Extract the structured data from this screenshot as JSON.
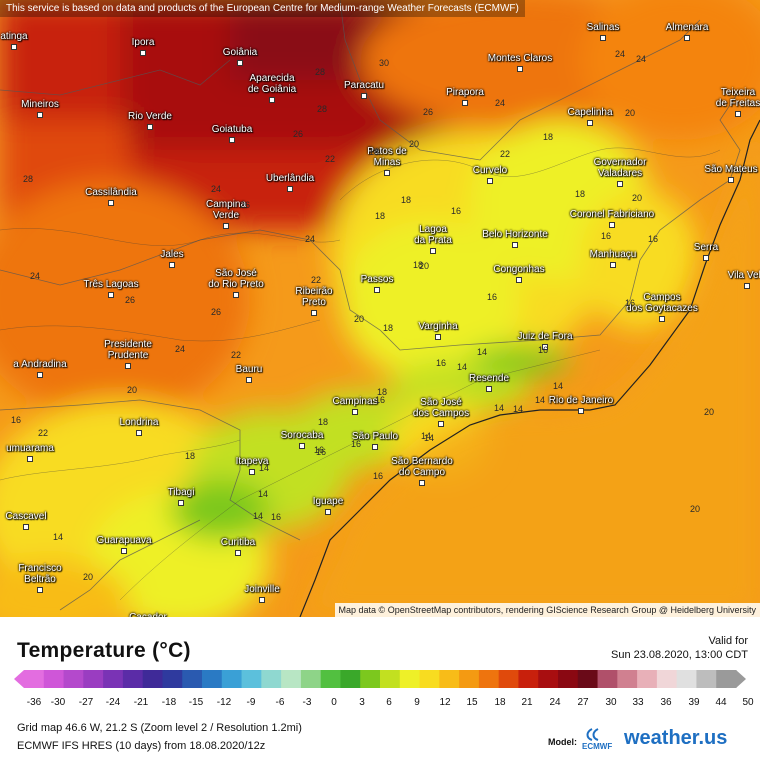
{
  "attribution_top": "This service is based on data and products of the European Centre for Medium-range Weather Forecasts (ECMWF)",
  "attribution_bottom": "Map data © OpenStreetMap contributors, rendering GIScience Research Group @ Heidelberg University",
  "cities": [
    {
      "name": "Ipora"
    },
    {
      "name": "Goiânia"
    },
    {
      "name": "Aparecida\nde Goiânia"
    },
    {
      "name": "Mineiros"
    },
    {
      "name": "Rio Verde"
    },
    {
      "name": "Goiatuba"
    },
    {
      "name": "Paracatu"
    },
    {
      "name": "Pirapora"
    },
    {
      "name": "Montes Claros"
    },
    {
      "name": "Salinas"
    },
    {
      "name": "Almenara"
    },
    {
      "name": "Teixeira\nde Freitas"
    },
    {
      "name": "Capelinha"
    },
    {
      "name": "Patos de\nMinas"
    },
    {
      "name": "Curvelo"
    },
    {
      "name": "Governador\nValadares"
    },
    {
      "name": "São Mateus"
    },
    {
      "name": "Uberlândia"
    },
    {
      "name": "Cassilândia"
    },
    {
      "name": "Campina\nVerde"
    },
    {
      "name": "Coronel Fabriciano"
    },
    {
      "name": "Lagoa\nda Prata"
    },
    {
      "name": "Belo Horizonte"
    },
    {
      "name": "Manhuaçu"
    },
    {
      "name": "Serra"
    },
    {
      "name": "Vila Velh"
    },
    {
      "name": "Jales"
    },
    {
      "name": "Três Lagoas"
    },
    {
      "name": "São José\ndo Rio Preto"
    },
    {
      "name": "Passos"
    },
    {
      "name": "Congonhas"
    },
    {
      "name": "Ribeirão\nPreto"
    },
    {
      "name": "Campos\ndos Goytacazes"
    },
    {
      "name": "Varginha"
    },
    {
      "name": "Juiz de Fora"
    },
    {
      "name": "Presidente\nPrudente"
    },
    {
      "name": "a Andradina"
    },
    {
      "name": "Bauru"
    },
    {
      "name": "Resende"
    },
    {
      "name": "Campinas"
    },
    {
      "name": "São José\ndos Campos"
    },
    {
      "name": "Rio de Janeiro"
    },
    {
      "name": "Londrina"
    },
    {
      "name": "Sorocaba"
    },
    {
      "name": "São Paulo"
    },
    {
      "name": "umuarama"
    },
    {
      "name": "Itapeva"
    },
    {
      "name": "São Bernardo\ndo Campo"
    },
    {
      "name": "Tibagi"
    },
    {
      "name": "Iguape"
    },
    {
      "name": "Cascavel"
    },
    {
      "name": "Guarapuava"
    },
    {
      "name": "Curitiba"
    },
    {
      "name": "Francisco\nBeltrão"
    },
    {
      "name": "Joinville"
    },
    {
      "name": "Cacador"
    },
    {
      "name": "atinga"
    }
  ],
  "isotherm_labels": [
    "30",
    "28",
    "24",
    "26",
    "28",
    "24",
    "20",
    "18",
    "20",
    "18",
    "26",
    "26",
    "24",
    "22",
    "20",
    "18",
    "16",
    "18",
    "16",
    "18",
    "24",
    "22",
    "20",
    "18",
    "16",
    "16",
    "16",
    "14",
    "16",
    "14",
    "24",
    "22",
    "20",
    "18",
    "16",
    "14",
    "14",
    "16",
    "14",
    "14",
    "16",
    "14",
    "20",
    "20",
    "18",
    "16",
    "14",
    "16",
    "14",
    "18",
    "16",
    "14",
    "14",
    "16",
    "18",
    "14",
    "20",
    "22",
    "28",
    "16",
    "24",
    "26",
    "22",
    "24",
    "26",
    "20"
  ],
  "legend": {
    "title": "Temperature (°C)",
    "valid_label": "Valid for",
    "valid_time": "Sun 23.08.2020, 13:00 CDT",
    "ticks": [
      "-36",
      "-30",
      "-27",
      "-24",
      "-21",
      "-18",
      "-15",
      "-12",
      "-9",
      "-6",
      "-3",
      "0",
      "3",
      "6",
      "9",
      "12",
      "15",
      "18",
      "21",
      "24",
      "27",
      "30",
      "33",
      "36",
      "39",
      "44",
      "50"
    ],
    "colors": [
      "#e36de0",
      "#cf56d8",
      "#b449cc",
      "#9a3dc1",
      "#7a33b5",
      "#5b2ca7",
      "#3f2a98",
      "#2f3a9e",
      "#2a5ab0",
      "#2a7ac4",
      "#3aa0d6",
      "#5cc0dc",
      "#8fd8d0",
      "#b8e6c4",
      "#8ed488",
      "#52c040",
      "#3aa82a",
      "#7cc81e",
      "#c2e020",
      "#eef028",
      "#f8dc20",
      "#f8bc18",
      "#f49a12",
      "#ee740e",
      "#e04a0c",
      "#c8200c",
      "#a80e10",
      "#8a0812",
      "#6a0a18",
      "#b0506a",
      "#d08090",
      "#e8b0b8",
      "#f0d6d8",
      "#e0e0e0",
      "#bdbdbd",
      "#9a9a9a"
    ]
  },
  "info": {
    "grid": "Grid map 46.6 W, 21.2 S (Zoom level 2 / Resolution 1.2mi)",
    "model_run": "ECMWF IFS HRES (10 days) from 18.08.2020/12z",
    "model_label": "Model:",
    "ecmwf": "ECMWF",
    "brand": "weather.us"
  }
}
